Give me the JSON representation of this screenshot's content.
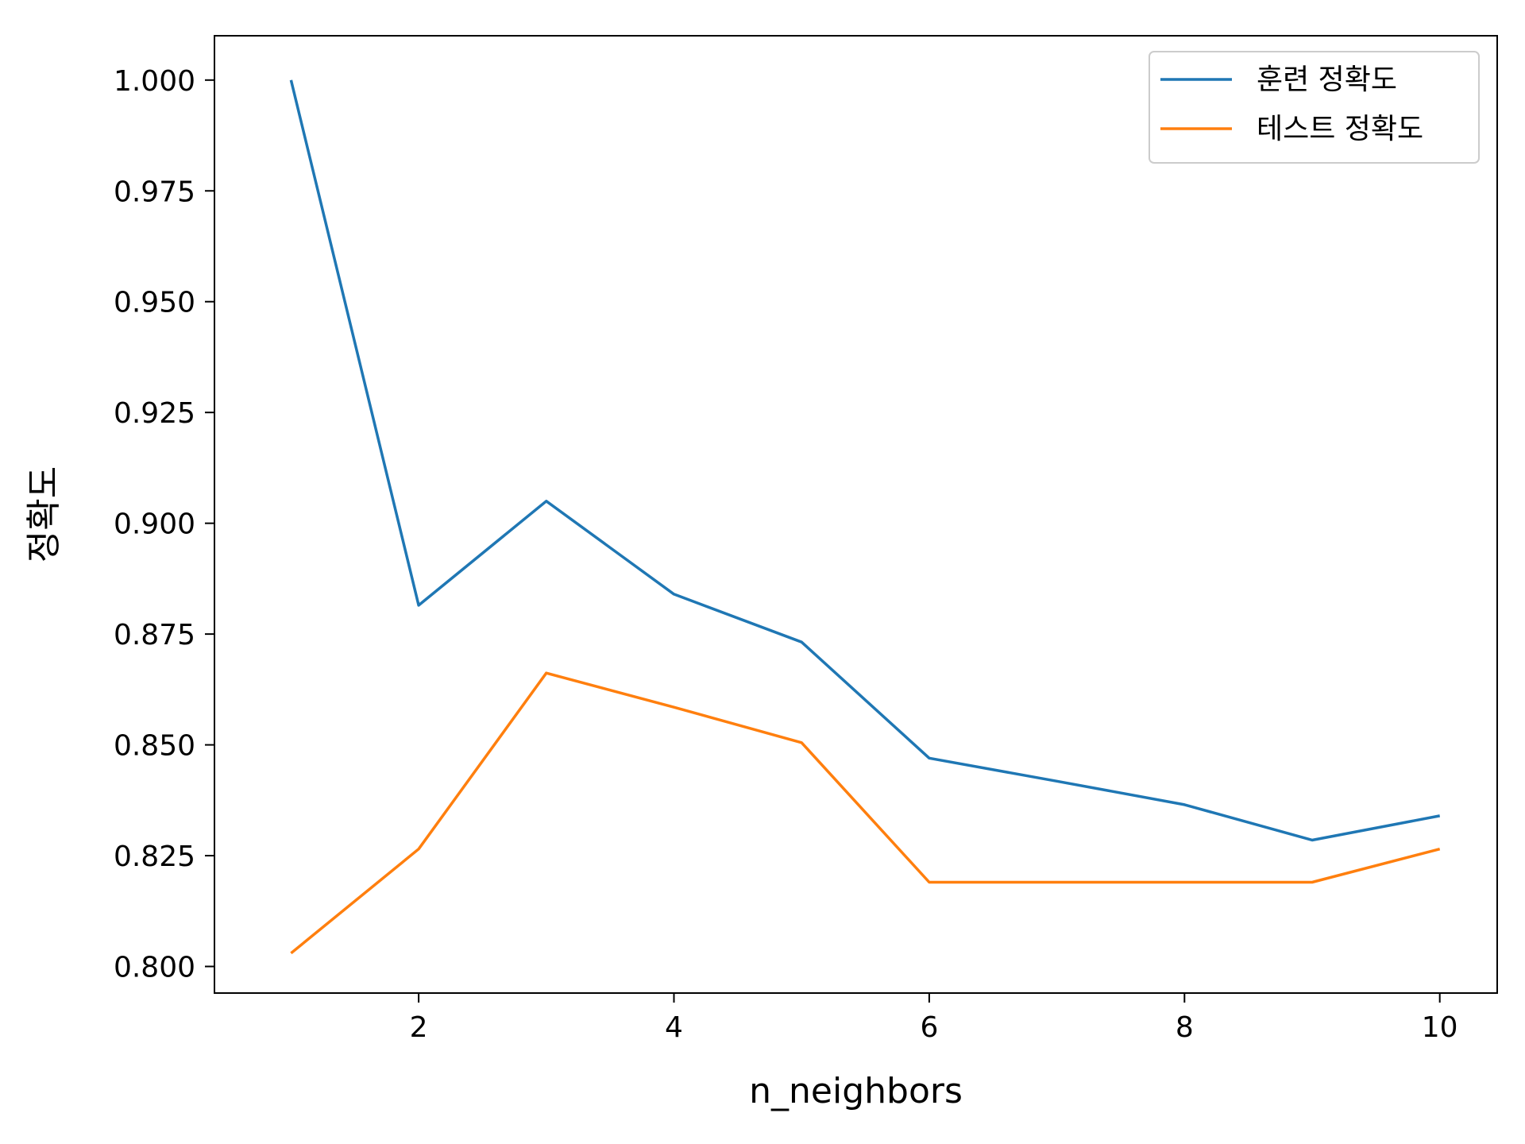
{
  "chart_data": {
    "type": "line",
    "xlabel": "n_neighbors",
    "ylabel": "정확도",
    "xlim": [
      0.4,
      10.45
    ],
    "ylim": [
      0.794,
      1.01
    ],
    "xticks": [
      2,
      4,
      6,
      8,
      10
    ],
    "yticks": [
      0.8,
      0.825,
      0.85,
      0.875,
      0.9,
      0.925,
      0.95,
      0.975,
      1.0
    ],
    "ytick_labels": [
      "0.800",
      "0.825",
      "0.850",
      "0.875",
      "0.900",
      "0.925",
      "0.950",
      "0.975",
      "1.000"
    ],
    "grid": false,
    "legend_position": "top-right",
    "x": [
      1,
      2,
      3,
      4,
      5,
      6,
      7,
      8,
      9,
      10
    ],
    "series": [
      {
        "name": "훈련 정확도",
        "color": "#1f77b4",
        "values": [
          1.0,
          0.8815,
          0.905,
          0.884,
          0.8732,
          0.847,
          0.8418,
          0.8365,
          0.8285,
          0.834
        ]
      },
      {
        "name": "테스트 정확도",
        "color": "#ff7f0e",
        "values": [
          0.803,
          0.8265,
          0.8662,
          0.8585,
          0.8505,
          0.819,
          0.819,
          0.819,
          0.819,
          0.8265
        ]
      }
    ]
  }
}
